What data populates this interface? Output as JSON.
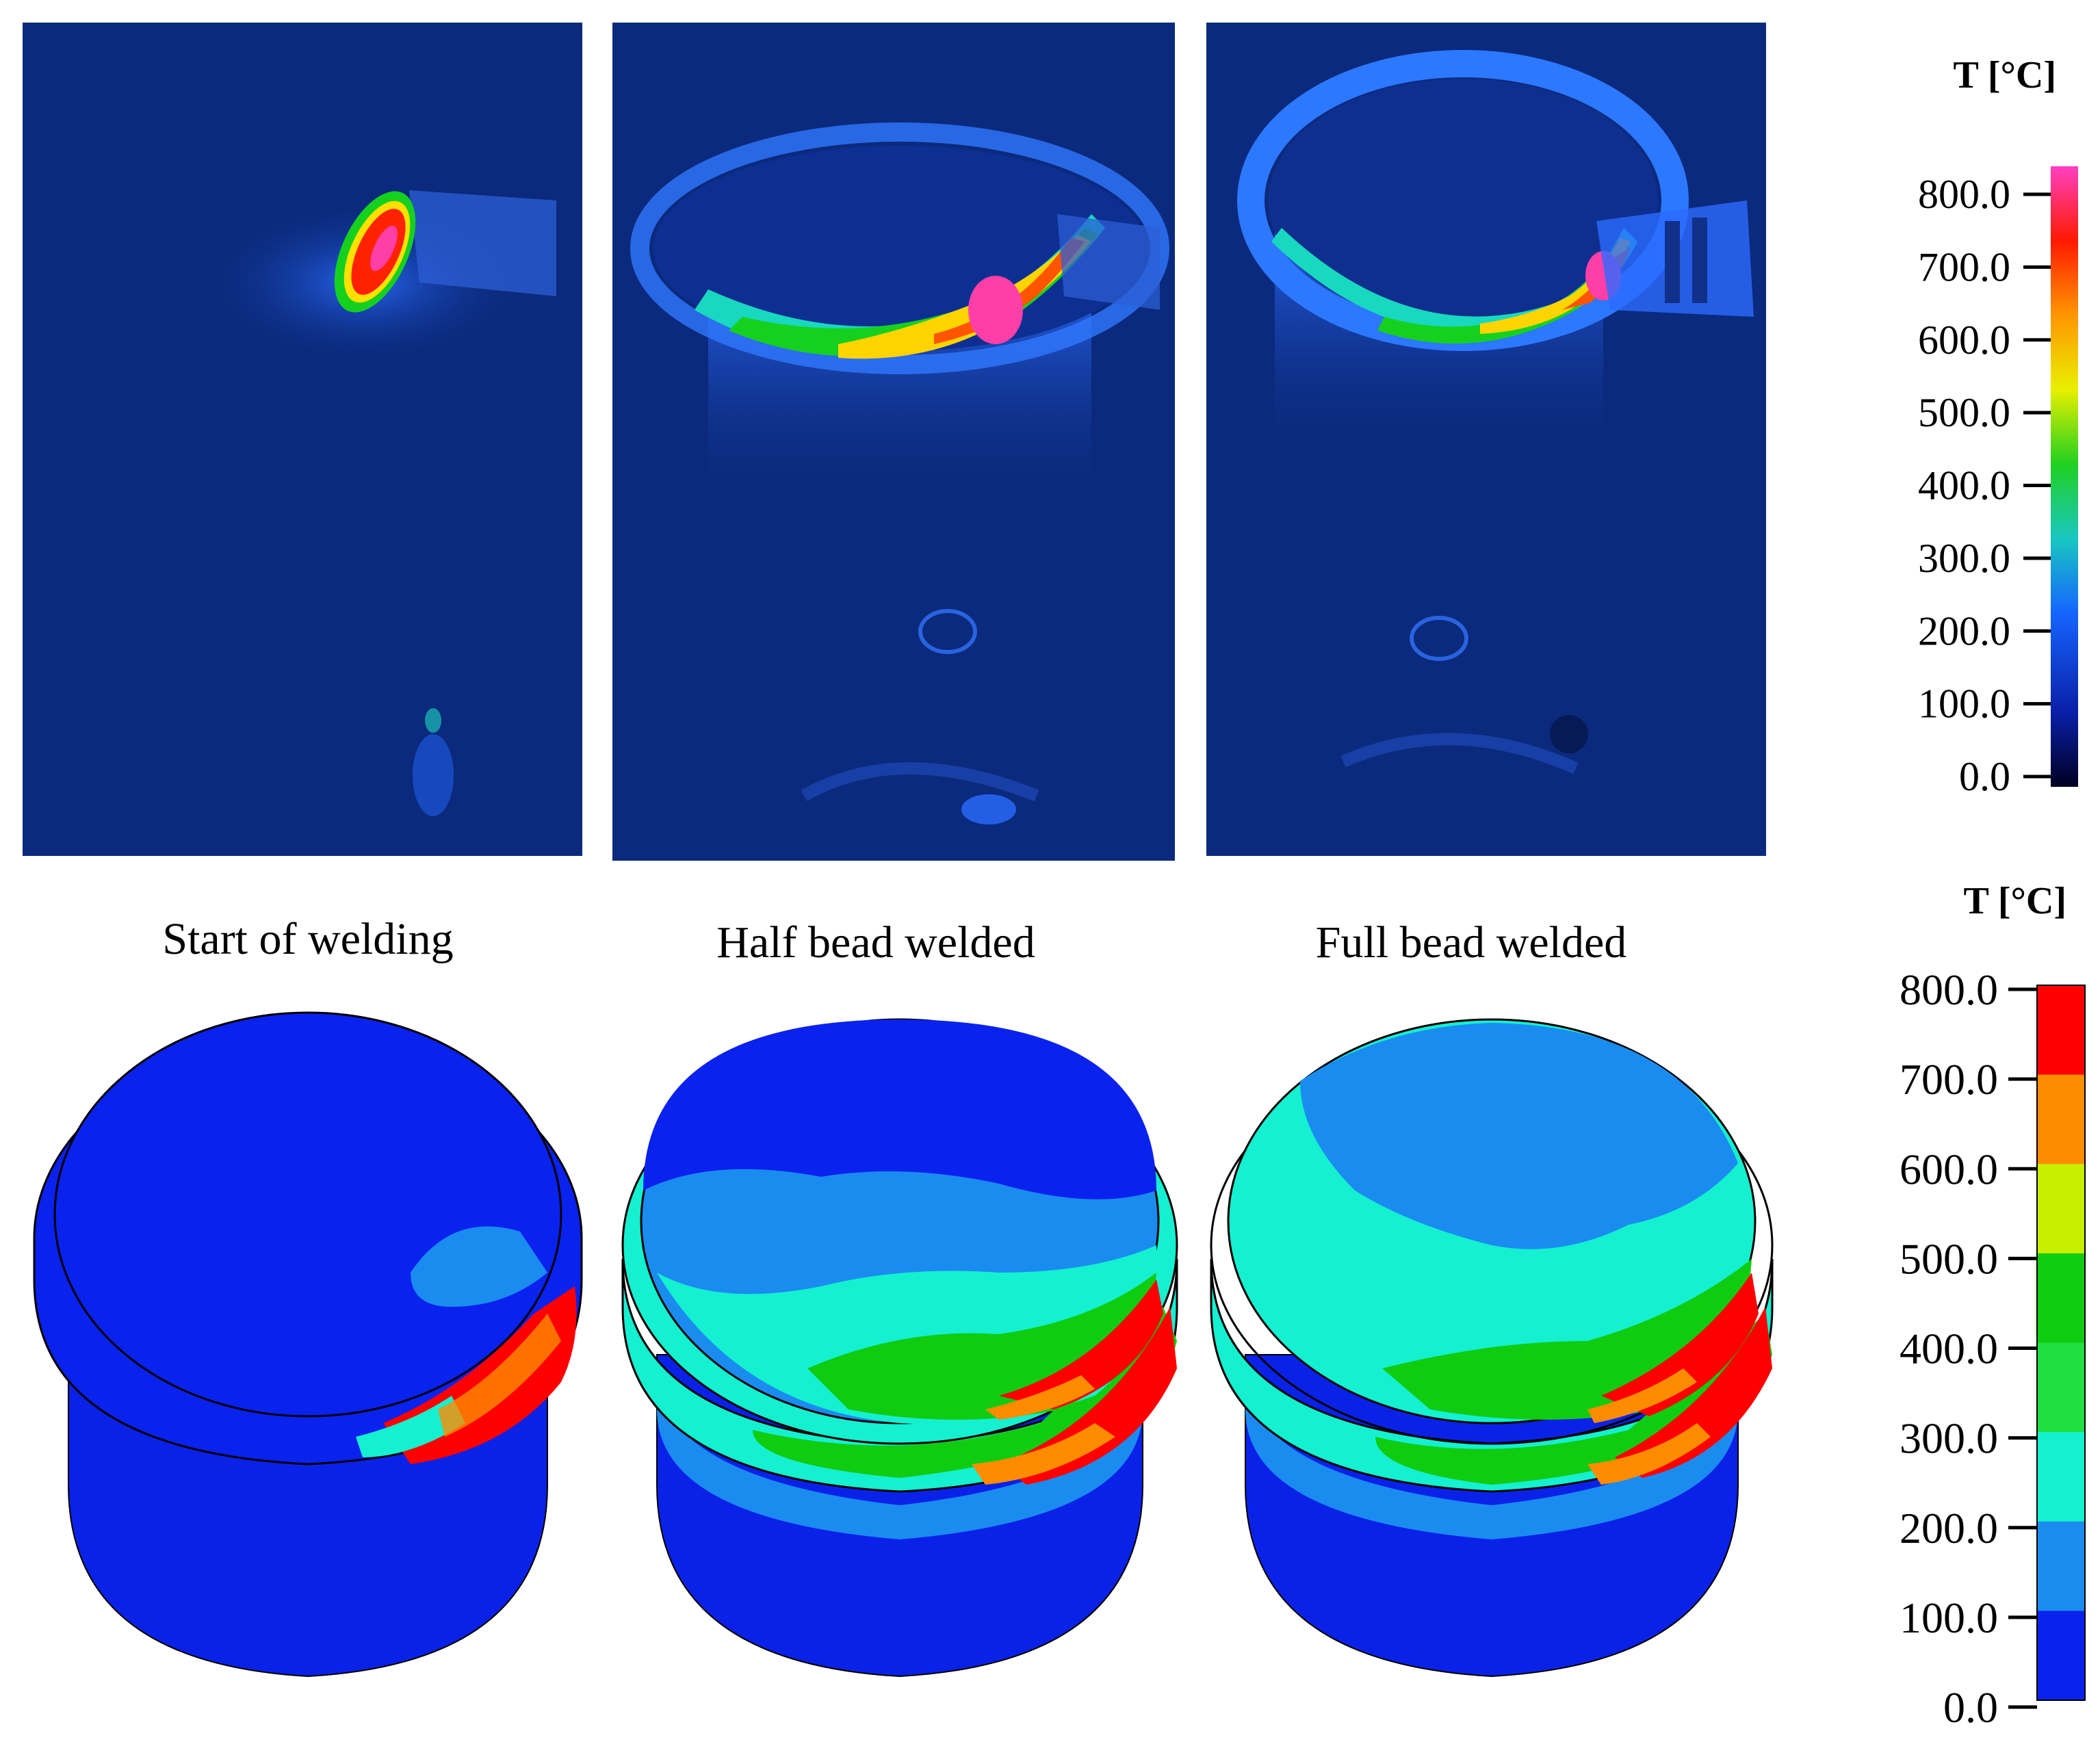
{
  "figure": {
    "panels": [
      {
        "caption": "Start of welding",
        "stage": "start"
      },
      {
        "caption": "Half bead welded",
        "stage": "half"
      },
      {
        "caption": "Full bead welded",
        "stage": "full"
      }
    ],
    "colorbar_top": {
      "title": "T [°C]",
      "ticks": [
        "800.0",
        "700.0",
        "600.0",
        "500.0",
        "400.0",
        "300.0",
        "200.0",
        "100.0",
        "0.0"
      ],
      "style": "continuous"
    },
    "colorbar_bottom": {
      "title": "T [°C]",
      "ticks": [
        "800.0",
        "700.0",
        "600.0",
        "500.0",
        "400.0",
        "300.0",
        "200.0",
        "100.0",
        "0.0"
      ],
      "style": "banded",
      "band_colors": [
        "#ff0000",
        "#ff8c00",
        "#c8ee00",
        "#10cc10",
        "#1fe040",
        "#14f0d0",
        "#1a8cf0",
        "#0a22ee"
      ]
    },
    "colors": {
      "thermal_background": "#0b2a7d",
      "fem_cold": "#0a22ee",
      "fem_100_200": "#1a8cf0",
      "fem_200_300": "#14f0d0",
      "fem_300_500": "#10cc10",
      "fem_hot": "#ff0000"
    }
  }
}
